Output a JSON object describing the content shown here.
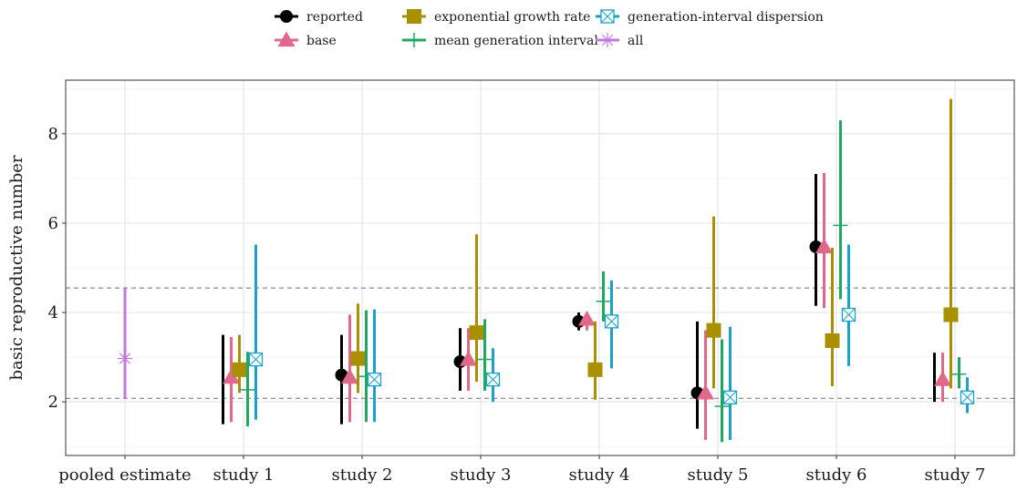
{
  "chart_data": {
    "type": "scatter",
    "ylabel": "basic reproductive number",
    "xlabel": "",
    "title": "",
    "categories": [
      "pooled estimate",
      "study 1",
      "study 2",
      "study 3",
      "study 4",
      "study 5",
      "study 6",
      "study 7"
    ],
    "ylim": [
      0.8,
      9.2
    ],
    "yticks": [
      2,
      4,
      6,
      8
    ],
    "grid": true,
    "reference_lines": [
      2.08,
      4.55
    ],
    "legend_position": "top",
    "legend_order": [
      "reported",
      "base",
      "exponential growth rate",
      "mean generation interval",
      "generation-interval dispersion",
      "all"
    ],
    "series": [
      {
        "name": "reported",
        "color": "#000000",
        "marker": "circle",
        "offset": -2.5,
        "points": [
          {
            "x": "study 1",
            "y": null,
            "lo": 1.5,
            "hi": 3.5
          },
          {
            "x": "study 2",
            "y": 2.6,
            "lo": 1.5,
            "hi": 3.5
          },
          {
            "x": "study 3",
            "y": 2.9,
            "lo": 2.25,
            "hi": 3.65
          },
          {
            "x": "study 4",
            "y": 3.8,
            "lo": 3.6,
            "hi": 4.0
          },
          {
            "x": "study 5",
            "y": 2.2,
            "lo": 1.4,
            "hi": 3.8
          },
          {
            "x": "study 6",
            "y": 5.47,
            "lo": 4.15,
            "hi": 7.1
          },
          {
            "x": "study 7",
            "y": null,
            "lo": 2.0,
            "hi": 3.1
          }
        ]
      },
      {
        "name": "base",
        "color": "#e0688a",
        "marker": "triangle",
        "offset": -1.5,
        "points": [
          {
            "x": "study 1",
            "y": 2.55,
            "lo": 1.55,
            "hi": 3.45
          },
          {
            "x": "study 2",
            "y": 2.55,
            "lo": 1.55,
            "hi": 3.95
          },
          {
            "x": "study 3",
            "y": 2.95,
            "lo": 2.25,
            "hi": 3.65
          },
          {
            "x": "study 4",
            "y": 3.85,
            "lo": 3.6,
            "hi": 4.0
          },
          {
            "x": "study 5",
            "y": 2.2,
            "lo": 1.15,
            "hi": 3.6
          },
          {
            "x": "study 6",
            "y": 5.47,
            "lo": 4.1,
            "hi": 7.12
          },
          {
            "x": "study 7",
            "y": 2.5,
            "lo": 2.0,
            "hi": 3.1
          }
        ]
      },
      {
        "name": "exponential growth rate",
        "color": "#a89000",
        "marker": "square",
        "offset": -0.5,
        "points": [
          {
            "x": "study 1",
            "y": 2.72,
            "lo": 2.2,
            "hi": 3.5
          },
          {
            "x": "study 2",
            "y": 2.97,
            "lo": 2.2,
            "hi": 4.2
          },
          {
            "x": "study 3",
            "y": 3.55,
            "lo": 2.45,
            "hi": 5.75
          },
          {
            "x": "study 4",
            "y": 2.72,
            "lo": 2.05,
            "hi": 3.8
          },
          {
            "x": "study 5",
            "y": 3.6,
            "lo": 2.3,
            "hi": 6.15
          },
          {
            "x": "study 6",
            "y": 3.37,
            "lo": 2.35,
            "hi": 5.45
          },
          {
            "x": "study 7",
            "y": 3.95,
            "lo": 2.3,
            "hi": 8.78
          }
        ]
      },
      {
        "name": "mean generation interval",
        "color": "#20a860",
        "marker": "plus",
        "offset": 0.5,
        "points": [
          {
            "x": "study 1",
            "y": 2.27,
            "lo": 1.45,
            "hi": 3.12
          },
          {
            "x": "study 2",
            "y": 2.57,
            "lo": 1.55,
            "hi": 4.05
          },
          {
            "x": "study 3",
            "y": 2.95,
            "lo": 2.25,
            "hi": 3.85
          },
          {
            "x": "study 4",
            "y": 4.25,
            "lo": 3.8,
            "hi": 4.92
          },
          {
            "x": "study 5",
            "y": 1.9,
            "lo": 1.1,
            "hi": 3.4
          },
          {
            "x": "study 6",
            "y": 5.95,
            "lo": 4.3,
            "hi": 8.3
          },
          {
            "x": "study 7",
            "y": 2.62,
            "lo": 2.3,
            "hi": 3.0
          }
        ]
      },
      {
        "name": "generation-interval dispersion",
        "color": "#1aa2c8",
        "marker": "boxx",
        "offset": 1.5,
        "points": [
          {
            "x": "study 1",
            "y": 2.95,
            "lo": 1.6,
            "hi": 5.52
          },
          {
            "x": "study 2",
            "y": 2.5,
            "lo": 1.55,
            "hi": 4.07
          },
          {
            "x": "study 3",
            "y": 2.5,
            "lo": 2.0,
            "hi": 3.2
          },
          {
            "x": "study 4",
            "y": 3.8,
            "lo": 2.75,
            "hi": 4.72
          },
          {
            "x": "study 5",
            "y": 2.1,
            "lo": 1.15,
            "hi": 3.68
          },
          {
            "x": "study 6",
            "y": 3.95,
            "lo": 2.8,
            "hi": 5.52
          },
          {
            "x": "study 7",
            "y": 2.1,
            "lo": 1.75,
            "hi": 2.55
          }
        ]
      },
      {
        "name": "all",
        "color": "#c078e0",
        "marker": "asterisk",
        "offset": 0,
        "points": [
          {
            "x": "pooled estimate",
            "y": 2.97,
            "lo": 2.08,
            "hi": 4.55
          }
        ]
      }
    ]
  }
}
